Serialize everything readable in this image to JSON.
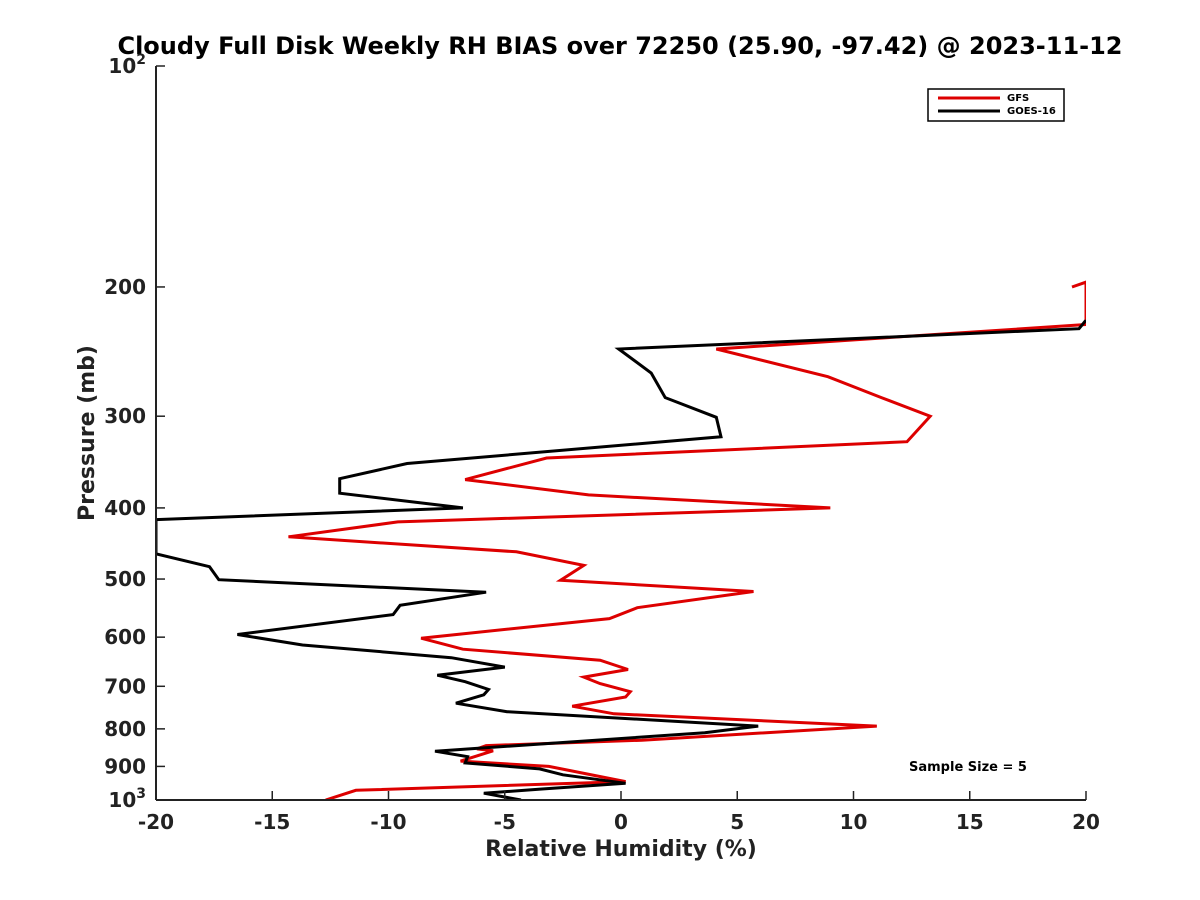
{
  "chart_data": {
    "type": "line",
    "title": "Cloudy Full Disk Weekly RH BIAS over 72250 (25.90, -97.42) @ 2023-11-12",
    "xlabel": "Relative Humidity (%)",
    "ylabel": "Pressure (mb)",
    "xlim": [
      -20,
      20
    ],
    "ylim": [
      1000,
      100
    ],
    "yscale": "log",
    "x_ticks": [
      -20,
      -15,
      -10,
      -5,
      0,
      5,
      10,
      15,
      20
    ],
    "y_ticks": [
      {
        "value": 100,
        "label": "10",
        "sup": "2"
      },
      {
        "value": 200,
        "label": "200",
        "sup": ""
      },
      {
        "value": 300,
        "label": "300",
        "sup": ""
      },
      {
        "value": 400,
        "label": "400",
        "sup": ""
      },
      {
        "value": 500,
        "label": "500",
        "sup": ""
      },
      {
        "value": 600,
        "label": "600",
        "sup": ""
      },
      {
        "value": 700,
        "label": "700",
        "sup": ""
      },
      {
        "value": 800,
        "label": "800",
        "sup": ""
      },
      {
        "value": 900,
        "label": "900",
        "sup": ""
      },
      {
        "value": 1000,
        "label": "10",
        "sup": "3"
      }
    ],
    "grid": false,
    "legend_position": "top-right",
    "annotation": "Sample Size = 5",
    "series": [
      {
        "name": "GFS",
        "color": "#dd0000",
        "points": [
          [
            19.4,
            200
          ],
          [
            20,
            197
          ],
          [
            20,
            204
          ],
          [
            20,
            225
          ],
          [
            4.1,
            243
          ],
          [
            8.9,
            265
          ],
          [
            11.2,
            283
          ],
          [
            13.3,
            300
          ],
          [
            12.3,
            325
          ],
          [
            -3.2,
            342
          ],
          [
            -6.7,
            366
          ],
          [
            -1.4,
            384
          ],
          [
            9,
            400
          ],
          [
            -9.6,
            418
          ],
          [
            -14.3,
            438
          ],
          [
            -4.5,
            459
          ],
          [
            -1.6,
            479
          ],
          [
            -2.6,
            502
          ],
          [
            5.7,
            520
          ],
          [
            0.7,
            547
          ],
          [
            -0.5,
            566
          ],
          [
            -8.6,
            602
          ],
          [
            -6.8,
            623
          ],
          [
            -0.9,
            645
          ],
          [
            0.3,
            664
          ],
          [
            -1.6,
            680
          ],
          [
            -0.9,
            694
          ],
          [
            0.4,
            712
          ],
          [
            0.2,
            724
          ],
          [
            -2.1,
            745
          ],
          [
            -0.3,
            763
          ],
          [
            11,
            793
          ],
          [
            0.9,
            829
          ],
          [
            -5.8,
            843
          ],
          [
            -6.2,
            852
          ],
          [
            -5.5,
            857
          ],
          [
            -6.9,
            885
          ],
          [
            -3.1,
            900
          ],
          [
            0.2,
            944
          ],
          [
            -11.4,
            970
          ],
          [
            -12.7,
            1000
          ]
        ]
      },
      {
        "name": "GOES-16",
        "color": "#000000",
        "points": [
          [
            20,
            222
          ],
          [
            19.7,
            228
          ],
          [
            -0.1,
            243
          ],
          [
            1.3,
            262
          ],
          [
            1.9,
            283
          ],
          [
            4.1,
            301
          ],
          [
            4.3,
            320
          ],
          [
            -9.2,
            348
          ],
          [
            -12.1,
            365
          ],
          [
            -12.1,
            382
          ],
          [
            -6.8,
            400
          ],
          [
            -20,
            415
          ],
          [
            -20,
            462
          ],
          [
            -17.7,
            481
          ],
          [
            -17.3,
            501
          ],
          [
            -5.8,
            521
          ],
          [
            -9.5,
            543
          ],
          [
            -9.8,
            559
          ],
          [
            -16.5,
            595
          ],
          [
            -13.7,
            615
          ],
          [
            -7.3,
            640
          ],
          [
            -5,
            659
          ],
          [
            -7.9,
            676
          ],
          [
            -6.7,
            690
          ],
          [
            -5.7,
            707
          ],
          [
            -5.9,
            719
          ],
          [
            -7.1,
            738
          ],
          [
            -4.9,
            758
          ],
          [
            5.9,
            793
          ],
          [
            3.6,
            810
          ],
          [
            -8,
            858
          ],
          [
            -6.6,
            873
          ],
          [
            -6.7,
            890
          ],
          [
            -3.5,
            907
          ],
          [
            -2.5,
            924
          ],
          [
            0.2,
            949
          ],
          [
            -3.4,
            966
          ],
          [
            -5.9,
            979
          ],
          [
            -4.3,
            1000
          ]
        ]
      }
    ]
  }
}
